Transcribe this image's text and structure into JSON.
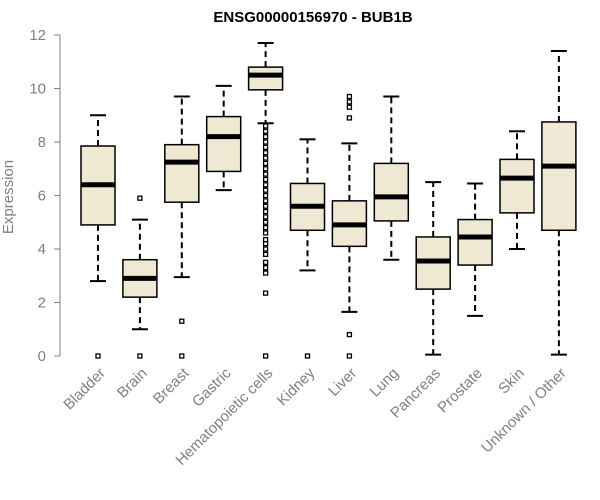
{
  "chart_data": {
    "type": "boxplot",
    "title": "ENSG00000156970 - BUB1B",
    "xlabel": "",
    "ylabel": "Expression",
    "ylim": [
      0,
      12
    ],
    "yticks": [
      0,
      2,
      4,
      6,
      8,
      10,
      12
    ],
    "box_fill": "#efe8d2",
    "box_stroke": "#000000",
    "categories": [
      "Bladder",
      "Brain",
      "Breast",
      "Gastric",
      "Hematopoietic cells",
      "Kidney",
      "Liver",
      "Lung",
      "Pancreas",
      "Prostate",
      "Skin",
      "Unknown / Other"
    ],
    "boxes": [
      {
        "whisker_low": 2.8,
        "q1": 4.9,
        "median": 6.4,
        "q3": 7.85,
        "whisker_high": 9.0,
        "outliers": [
          0
        ]
      },
      {
        "whisker_low": 1.0,
        "q1": 2.2,
        "median": 2.9,
        "q3": 3.6,
        "whisker_high": 5.1,
        "outliers": [
          0,
          5.9
        ]
      },
      {
        "whisker_low": 2.95,
        "q1": 5.75,
        "median": 7.25,
        "q3": 7.9,
        "whisker_high": 9.7,
        "outliers": [
          0,
          1.3
        ]
      },
      {
        "whisker_low": 6.2,
        "q1": 6.9,
        "median": 8.2,
        "q3": 8.95,
        "whisker_high": 10.1,
        "outliers": []
      },
      {
        "whisker_low": 8.7,
        "q1": 9.95,
        "median": 10.5,
        "q3": 10.8,
        "whisker_high": 11.7,
        "outliers": [
          0,
          2.35,
          3.1,
          3.3,
          3.5,
          3.8,
          4.0,
          4.2,
          4.35,
          4.6,
          4.8,
          5.0,
          5.2,
          5.4,
          5.6,
          5.8,
          6.0,
          6.2,
          6.4,
          6.6,
          6.8,
          7.0,
          7.2,
          7.4,
          7.6,
          7.8,
          8.0,
          8.2,
          8.4,
          8.6
        ]
      },
      {
        "whisker_low": 3.2,
        "q1": 4.7,
        "median": 5.6,
        "q3": 6.45,
        "whisker_high": 8.1,
        "outliers": [
          0
        ]
      },
      {
        "whisker_low": 1.65,
        "q1": 4.1,
        "median": 4.9,
        "q3": 5.8,
        "whisker_high": 7.95,
        "outliers": [
          0,
          0.8,
          8.9,
          9.3,
          9.5,
          9.7
        ]
      },
      {
        "whisker_low": 3.6,
        "q1": 5.05,
        "median": 5.95,
        "q3": 7.2,
        "whisker_high": 9.7,
        "outliers": []
      },
      {
        "whisker_low": 0.05,
        "q1": 2.5,
        "median": 3.55,
        "q3": 4.45,
        "whisker_high": 6.5,
        "outliers": []
      },
      {
        "whisker_low": 1.5,
        "q1": 3.4,
        "median": 4.45,
        "q3": 5.1,
        "whisker_high": 6.45,
        "outliers": []
      },
      {
        "whisker_low": 4.0,
        "q1": 5.35,
        "median": 6.65,
        "q3": 7.35,
        "whisker_high": 8.4,
        "outliers": []
      },
      {
        "whisker_low": 0.05,
        "q1": 4.7,
        "median": 7.1,
        "q3": 8.75,
        "whisker_high": 11.4,
        "outliers": []
      }
    ]
  }
}
